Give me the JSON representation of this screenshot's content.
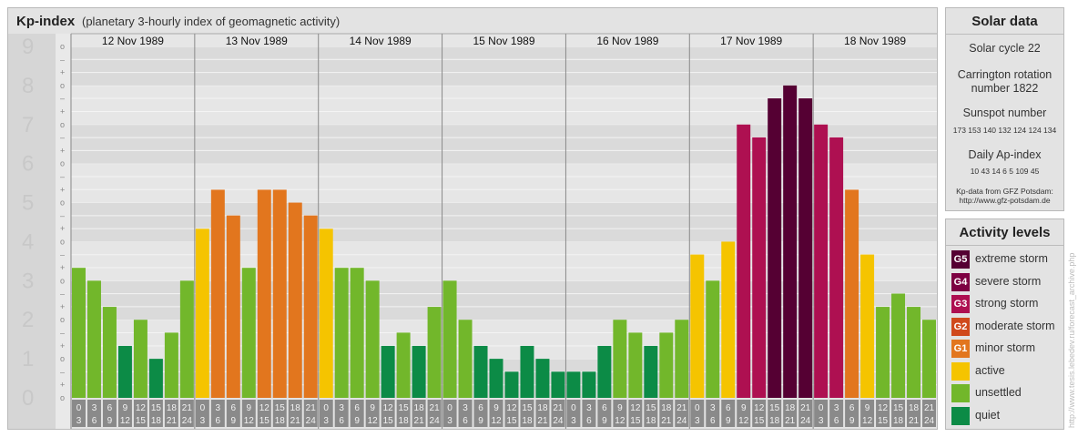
{
  "title": {
    "main": "Kp-index",
    "sub": "(planetary 3-hourly index of geomagnetic activity)"
  },
  "chart_data": {
    "type": "bar",
    "days": [
      "12 Nov 1989",
      "13 Nov 1989",
      "14 Nov 1989",
      "15 Nov 1989",
      "16 Nov 1989",
      "17 Nov 1989",
      "18 Nov 1989"
    ],
    "hour_ranges": [
      [
        "0",
        "3"
      ],
      [
        "3",
        "6"
      ],
      [
        "6",
        "9"
      ],
      [
        "9",
        "12"
      ],
      [
        "12",
        "15"
      ],
      [
        "15",
        "18"
      ],
      [
        "18",
        "21"
      ],
      [
        "21",
        "24"
      ]
    ],
    "values": [
      3.33,
      3.0,
      2.33,
      1.33,
      2.0,
      1.0,
      1.67,
      3.0,
      4.33,
      5.33,
      4.67,
      3.33,
      5.33,
      5.33,
      5.0,
      4.67,
      4.33,
      3.33,
      3.33,
      3.0,
      1.33,
      1.67,
      1.33,
      2.33,
      3.0,
      2.0,
      1.33,
      1.0,
      0.67,
      1.33,
      1.0,
      0.67,
      0.67,
      0.67,
      1.33,
      2.0,
      1.67,
      1.33,
      1.67,
      2.0,
      3.67,
      3.0,
      4.0,
      7.0,
      6.67,
      7.67,
      8.0,
      7.67,
      7.0,
      6.67,
      5.33,
      3.67,
      2.33,
      2.67,
      2.33,
      2.0
    ],
    "ylim": [
      0,
      9
    ],
    "y_ticks": [
      "0",
      "1",
      "2",
      "3",
      "4",
      "5",
      "6",
      "7",
      "8",
      "9"
    ],
    "sub_ticks": [
      "+",
      "o",
      "–"
    ],
    "level_colors": {
      "quiet": "#0c8b46",
      "unsettled": "#72b72b",
      "active": "#f5c400",
      "minor": "#e2761e",
      "moderate": "#d0491c",
      "strong": "#ae1051",
      "severe": "#7d0042",
      "extreme": "#550033"
    }
  },
  "solar_data": {
    "title": "Solar data",
    "solar_cycle": "Solar cycle 22",
    "carrington_1": "Carrington rotation",
    "carrington_2": "number 1822",
    "sunspot_title": "Sunspot number",
    "sunspot_values": "173 153 140 132 124 124 134",
    "ap_title": "Daily Ap-index",
    "ap_values": "10 43 14 6 5 109 45",
    "source_1": "Kp-data from GFZ Potsdam:",
    "source_2": "http://www.gfz-potsdam.de"
  },
  "activity_levels": {
    "title": "Activity levels",
    "items": [
      {
        "badge": "G5",
        "label": "extreme storm",
        "color": "#550033"
      },
      {
        "badge": "G4",
        "label": "severe storm",
        "color": "#7d0042"
      },
      {
        "badge": "G3",
        "label": "strong storm",
        "color": "#ae1051"
      },
      {
        "badge": "G2",
        "label": "moderate storm",
        "color": "#d0491c"
      },
      {
        "badge": "G1",
        "label": "minor storm",
        "color": "#e2761e"
      },
      {
        "badge": "",
        "label": "active",
        "color": "#f5c400"
      },
      {
        "badge": "",
        "label": "unsettled",
        "color": "#72b72b"
      },
      {
        "badge": "",
        "label": "quiet",
        "color": "#0c8b46"
      }
    ]
  },
  "watermark": "http://www.tesis.lebedev.ru/forecast_archive.php"
}
